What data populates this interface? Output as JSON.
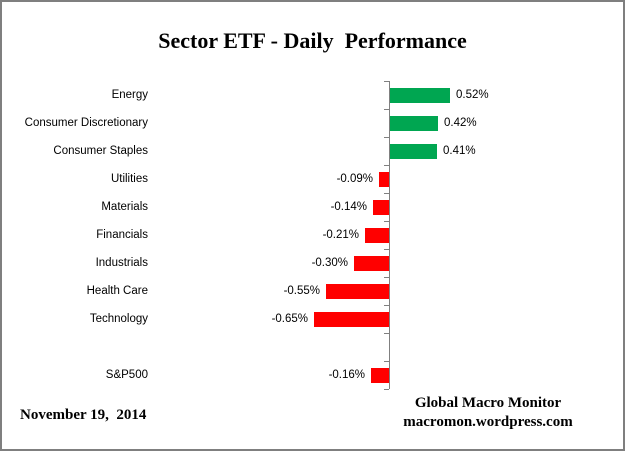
{
  "title": "Sector ETF - Daily  Performance",
  "footer": {
    "date": "November 19,  2014",
    "credit_line1": "Global Macro Monitor",
    "credit_line2": "macromon.wordpress.com"
  },
  "colors": {
    "positive_bar": "#00A651",
    "negative_bar": "#FF0000",
    "axis": "#808080",
    "border": "#7F7F7F",
    "text": "#000000"
  },
  "chart_data": {
    "type": "bar",
    "orientation": "horizontal",
    "title": "Sector ETF - Daily  Performance",
    "xlabel": "",
    "ylabel": "",
    "grid": false,
    "legend": false,
    "value_labels_position": "outside-end",
    "categories": [
      "Energy",
      "Consumer Discretionary",
      "Consumer Staples",
      "Utilities",
      "Materials",
      "Financials",
      "Industrials",
      "Health Care",
      "Technology",
      "",
      "S&P500"
    ],
    "values": [
      0.52,
      0.42,
      0.41,
      -0.09,
      -0.14,
      -0.21,
      -0.3,
      -0.55,
      -0.65,
      null,
      -0.16
    ],
    "value_labels": [
      "0.52%",
      "0.42%",
      "0.41%",
      "-0.09%",
      "-0.14%",
      "-0.21%",
      "-0.30%",
      "-0.55%",
      "-0.65%",
      "",
      "-0.16%"
    ]
  }
}
